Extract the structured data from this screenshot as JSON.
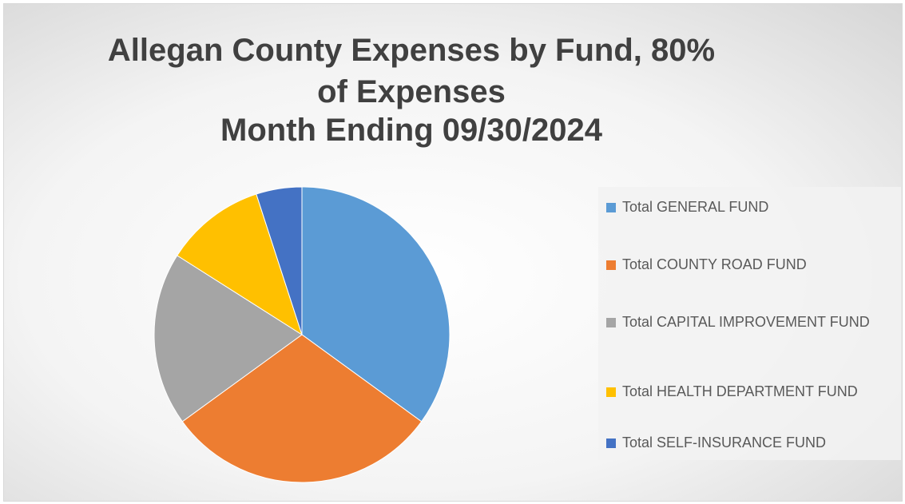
{
  "chart_data": {
    "type": "pie",
    "title": "Allegan County Expenses by Fund, 80% of Expenses",
    "subtitle": "Month Ending 09/30/2024",
    "categories": [
      "Total GENERAL FUND",
      "Total COUNTY ROAD FUND",
      "Total CAPITAL IMPROVEMENT FUND",
      "Total HEALTH DEPARTMENT FUND",
      "Total SELF-INSURANCE FUND"
    ],
    "values": [
      35,
      30,
      19,
      11,
      5
    ],
    "colors": [
      "#5b9bd5",
      "#ed7d31",
      "#a5a5a5",
      "#ffc000",
      "#4472c4"
    ],
    "legend": "right"
  }
}
